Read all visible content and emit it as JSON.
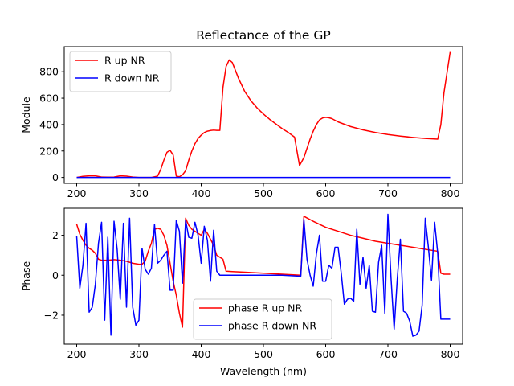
{
  "chart_data": [
    {
      "type": "line",
      "title": "Reflectance of the GP",
      "xlabel": "",
      "ylabel": "Module",
      "xlim": [
        180,
        820
      ],
      "ylim": [
        -45,
        990
      ],
      "xticks": [
        200,
        300,
        400,
        500,
        600,
        700,
        800
      ],
      "yticks": [
        0,
        200,
        400,
        600,
        800
      ],
      "legend": "upper left",
      "series": [
        {
          "name": "R up NR",
          "color": "#ff0000",
          "x": [
            200,
            210,
            220,
            230,
            240,
            250,
            260,
            270,
            280,
            290,
            300,
            310,
            320,
            330,
            335,
            340,
            345,
            350,
            355,
            360,
            365,
            370,
            375,
            380,
            385,
            390,
            395,
            400,
            405,
            410,
            415,
            420,
            425,
            430,
            435,
            440,
            445,
            450,
            455,
            460,
            465,
            470,
            480,
            490,
            500,
            510,
            520,
            530,
            540,
            550,
            558,
            565,
            570,
            575,
            580,
            585,
            590,
            595,
            600,
            605,
            610,
            620,
            640,
            660,
            680,
            700,
            720,
            740,
            760,
            780,
            785,
            790,
            800
          ],
          "y": [
            0,
            8,
            12,
            12,
            3,
            2,
            3,
            12,
            10,
            3,
            0,
            0,
            0,
            10,
            60,
            130,
            190,
            205,
            170,
            10,
            5,
            20,
            50,
            130,
            200,
            255,
            295,
            320,
            340,
            350,
            355,
            358,
            356,
            356,
            680,
            840,
            890,
            870,
            810,
            750,
            700,
            650,
            580,
            525,
            480,
            440,
            405,
            370,
            340,
            305,
            90,
            150,
            220,
            290,
            350,
            400,
            435,
            450,
            455,
            452,
            445,
            420,
            385,
            360,
            340,
            325,
            313,
            303,
            295,
            290,
            400,
            640,
            950
          ]
        },
        {
          "name": "R down NR",
          "color": "#0000ff",
          "x": [
            200,
            300,
            400,
            500,
            600,
            700,
            800
          ],
          "y": [
            0,
            0,
            0,
            0,
            0,
            0,
            0
          ]
        }
      ]
    },
    {
      "type": "line",
      "title": "",
      "xlabel": "Wavelength (nm)",
      "ylabel": "Phase",
      "xlim": [
        180,
        820
      ],
      "ylim": [
        -3.45,
        3.35
      ],
      "xticks": [
        200,
        300,
        400,
        500,
        600,
        700,
        800
      ],
      "yticks": [
        -2,
        0,
        2
      ],
      "legend": "lower center",
      "series": [
        {
          "name": "phase R up NR",
          "color": "#ff0000",
          "x": [
            200,
            205,
            210,
            215,
            220,
            225,
            230,
            235,
            240,
            250,
            260,
            270,
            280,
            290,
            300,
            305,
            310,
            315,
            320,
            325,
            330,
            335,
            340,
            345,
            350,
            355,
            360,
            365,
            370,
            375,
            380,
            385,
            390,
            395,
            400,
            405,
            410,
            415,
            420,
            425,
            430,
            435,
            440,
            450,
            470,
            500,
            530,
            560,
            565,
            580,
            600,
            620,
            640,
            660,
            680,
            700,
            720,
            740,
            760,
            780,
            785,
            790,
            800
          ],
          "y": [
            2.55,
            2.05,
            1.75,
            1.5,
            1.35,
            1.25,
            1.1,
            0.8,
            0.75,
            0.75,
            0.78,
            0.75,
            0.7,
            0.6,
            0.55,
            0.55,
            0.7,
            1.2,
            1.6,
            2.3,
            2.35,
            2.3,
            2.0,
            1.5,
            0.6,
            -0.3,
            -1.0,
            -1.9,
            -2.6,
            2.85,
            2.5,
            2.3,
            2.2,
            2.1,
            2.0,
            2.3,
            2.1,
            1.8,
            1.5,
            1.0,
            0.9,
            0.8,
            0.2,
            0.18,
            0.15,
            0.1,
            0.05,
            0.0,
            2.95,
            2.7,
            2.4,
            2.2,
            2.0,
            1.85,
            1.7,
            1.6,
            1.5,
            1.4,
            1.3,
            1.2,
            0.1,
            0.05,
            0.05
          ]
        },
        {
          "name": "phase R down NR",
          "color": "#0000ff",
          "x": [
            200,
            205,
            210,
            215,
            220,
            225,
            230,
            235,
            240,
            245,
            250,
            255,
            260,
            265,
            270,
            275,
            280,
            285,
            290,
            295,
            300,
            305,
            310,
            315,
            320,
            325,
            330,
            335,
            340,
            345,
            350,
            355,
            360,
            365,
            370,
            375,
            380,
            385,
            390,
            395,
            400,
            405,
            410,
            415,
            420,
            425,
            430,
            435,
            440,
            450,
            470,
            500,
            530,
            560,
            565,
            570,
            575,
            580,
            585,
            590,
            595,
            600,
            605,
            610,
            615,
            620,
            625,
            630,
            635,
            640,
            645,
            650,
            655,
            660,
            665,
            670,
            675,
            680,
            685,
            690,
            695,
            700,
            705,
            710,
            715,
            720,
            725,
            730,
            735,
            740,
            745,
            750,
            755,
            760,
            765,
            770,
            775,
            780,
            785,
            790,
            795,
            800
          ],
          "y": [
            1.95,
            -0.65,
            0.5,
            2.6,
            -1.85,
            -1.6,
            -0.45,
            1.6,
            2.65,
            -2.25,
            1.9,
            -3.0,
            2.7,
            1.3,
            -1.2,
            2.6,
            -1.6,
            2.85,
            -1.6,
            -2.5,
            -2.25,
            1.35,
            0.3,
            0.05,
            0.35,
            2.55,
            0.6,
            0.75,
            1.0,
            1.2,
            -0.75,
            -0.75,
            2.75,
            2.2,
            -0.4,
            2.75,
            1.9,
            1.85,
            2.65,
            2.0,
            0.6,
            2.45,
            1.75,
            -0.3,
            2.25,
            0.2,
            0.0,
            0.0,
            0.0,
            0.0,
            0.0,
            0.0,
            0.0,
            -0.05,
            2.8,
            0.8,
            0.0,
            -0.55,
            1.05,
            2.0,
            -0.3,
            -0.3,
            0.5,
            0.35,
            1.4,
            1.4,
            0.1,
            -1.45,
            -1.2,
            -1.15,
            -1.3,
            2.3,
            -0.45,
            0.9,
            -0.65,
            0.5,
            -1.8,
            -1.85,
            0.65,
            1.5,
            -1.9,
            3.05,
            -0.15,
            -2.7,
            -0.2,
            1.8,
            -1.8,
            -1.9,
            -2.3,
            -3.05,
            -3.0,
            -2.8,
            -1.5,
            2.85,
            1.4,
            -0.25,
            2.65,
            1.1,
            -2.2,
            -2.2,
            -2.2,
            -2.2
          ]
        }
      ]
    }
  ]
}
